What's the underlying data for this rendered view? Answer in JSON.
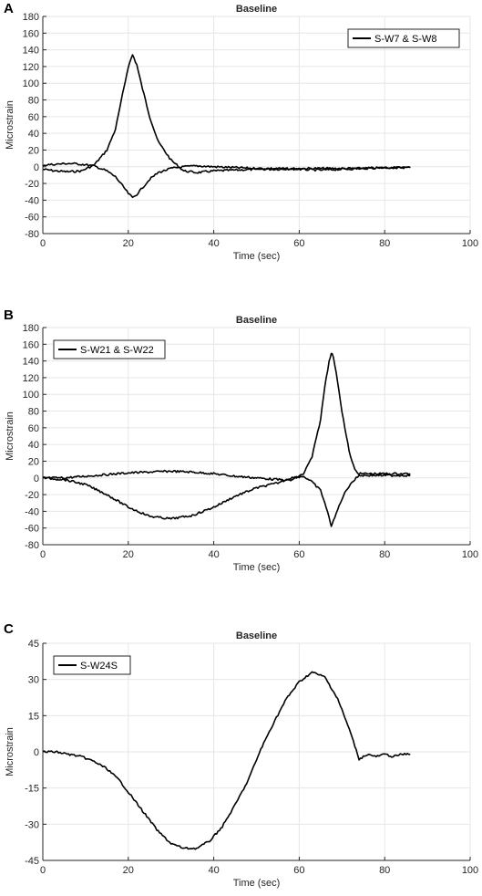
{
  "figure": {
    "panels": [
      "A",
      "B",
      "C"
    ]
  },
  "colors": {
    "line": "#000000",
    "grid": "#e6e6e6",
    "axis": "#262626"
  },
  "chart_data": [
    {
      "type": "line",
      "panel": "A",
      "title": "Baseline",
      "xlabel": "Time (sec)",
      "ylabel": "Microstrain",
      "xlim": [
        0,
        100
      ],
      "ylim": [
        -80,
        180
      ],
      "xticks": [
        0,
        20,
        40,
        60,
        80,
        100
      ],
      "yticks": [
        -80,
        -60,
        -40,
        -20,
        0,
        20,
        40,
        60,
        80,
        100,
        120,
        140,
        160,
        180
      ],
      "grid": true,
      "legend": {
        "position": "top-right",
        "entries": [
          "S-W7 & S-W8"
        ]
      },
      "series": [
        {
          "name": "S-W7 & S-W8",
          "x": [
            0,
            3,
            6,
            9,
            12,
            15,
            17,
            19,
            20,
            21,
            22,
            23,
            25,
            27,
            30,
            33,
            36,
            40,
            45,
            50,
            55,
            60,
            65,
            70,
            75,
            80,
            86
          ],
          "y": [
            -3,
            -5,
            -6,
            -5,
            2,
            20,
            45,
            95,
            120,
            134,
            122,
            100,
            60,
            30,
            8,
            -5,
            -7,
            -5,
            -4,
            -3,
            -3,
            -2,
            -2,
            -2,
            -2,
            -1,
            -1
          ]
        },
        {
          "name": "",
          "x": [
            0,
            3,
            6,
            9,
            12,
            15,
            17,
            19,
            20,
            21,
            22,
            23,
            25,
            27,
            30,
            33,
            36,
            40,
            45,
            50,
            55,
            60,
            65,
            70,
            75,
            80,
            86
          ],
          "y": [
            2,
            3,
            4,
            3,
            1,
            -5,
            -12,
            -25,
            -32,
            -37,
            -33,
            -27,
            -15,
            -7,
            -2,
            0,
            1,
            0,
            -1,
            -2,
            -2,
            -3,
            -4,
            -3,
            -2,
            -1,
            -1
          ]
        }
      ]
    },
    {
      "type": "line",
      "panel": "B",
      "title": "Baseline",
      "xlabel": "Time (sec)",
      "ylabel": "Microstrain",
      "xlim": [
        0,
        100
      ],
      "ylim": [
        -80,
        180
      ],
      "xticks": [
        0,
        20,
        40,
        60,
        80,
        100
      ],
      "yticks": [
        -80,
        -60,
        -40,
        -20,
        0,
        20,
        40,
        60,
        80,
        100,
        120,
        140,
        160,
        180
      ],
      "grid": true,
      "legend": {
        "position": "top-left",
        "entries": [
          "S-W21 & S-W22"
        ]
      },
      "series": [
        {
          "name": "S-W21 & S-W22",
          "x": [
            0,
            5,
            10,
            15,
            20,
            25,
            30,
            35,
            40,
            45,
            50,
            55,
            58,
            61,
            63,
            65,
            66,
            67,
            67.5,
            68,
            69,
            70,
            71,
            72,
            73,
            74,
            78,
            82,
            86
          ],
          "y": [
            0,
            0,
            2,
            4,
            6,
            7,
            8,
            7,
            5,
            2,
            0,
            -2,
            -3,
            5,
            25,
            70,
            110,
            140,
            150,
            145,
            115,
            80,
            50,
            25,
            10,
            5,
            5,
            5,
            5
          ]
        },
        {
          "name": "",
          "x": [
            0,
            5,
            10,
            15,
            20,
            25,
            30,
            35,
            40,
            45,
            50,
            55,
            58,
            61,
            63,
            65,
            66,
            67,
            67.5,
            68,
            69,
            70,
            71,
            72,
            73,
            74,
            78,
            82,
            86
          ],
          "y": [
            0,
            -2,
            -8,
            -20,
            -35,
            -46,
            -49,
            -45,
            -35,
            -22,
            -12,
            -6,
            0,
            2,
            -5,
            -15,
            -30,
            -48,
            -57,
            -52,
            -38,
            -25,
            -15,
            -7,
            -2,
            3,
            3,
            3,
            3
          ]
        }
      ]
    },
    {
      "type": "line",
      "panel": "C",
      "title": "Baseline",
      "xlabel": "Time (sec)",
      "ylabel": "Microstrain",
      "xlim": [
        0,
        100
      ],
      "ylim": [
        -45,
        45
      ],
      "xticks": [
        0,
        20,
        40,
        60,
        80,
        100
      ],
      "yticks": [
        -45,
        -30,
        -15,
        0,
        15,
        30,
        45
      ],
      "grid": true,
      "legend": {
        "position": "top-left",
        "entries": [
          "S-W24S"
        ]
      },
      "series": [
        {
          "name": "S-W24S",
          "x": [
            0,
            3,
            6,
            9,
            12,
            15,
            18,
            21,
            24,
            27,
            30,
            33,
            36,
            39,
            42,
            45,
            48,
            51,
            54,
            57,
            60,
            63,
            66,
            69,
            72,
            74,
            76,
            78,
            80,
            82,
            84,
            86
          ],
          "y": [
            0,
            0,
            -1,
            -2,
            -4,
            -7,
            -12,
            -19,
            -26,
            -33,
            -38,
            -40,
            -40,
            -37,
            -31,
            -22,
            -12,
            1,
            12,
            22,
            29,
            33,
            31,
            22,
            8,
            -3,
            -1,
            -2,
            -1,
            -2,
            -1,
            -1
          ]
        }
      ]
    }
  ]
}
